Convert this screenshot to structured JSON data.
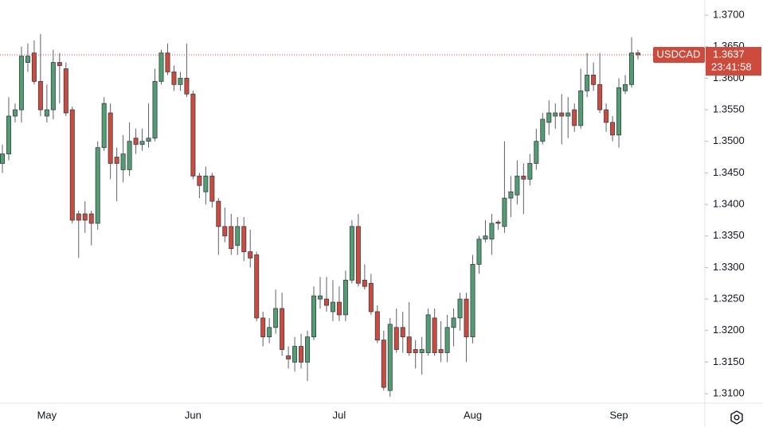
{
  "chart_data": {
    "type": "candlestick",
    "categories": [
      null,
      null,
      null,
      null,
      null,
      null,
      null,
      "May",
      null,
      null,
      null,
      null,
      null,
      null,
      null,
      null,
      null,
      null,
      null,
      null,
      null,
      null,
      null,
      null,
      null,
      null,
      null,
      null,
      null,
      null,
      "Jun",
      null,
      null,
      null,
      null,
      null,
      null,
      null,
      null,
      null,
      null,
      null,
      null,
      null,
      null,
      null,
      null,
      null,
      null,
      null,
      null,
      null,
      null,
      "Jul",
      null,
      null,
      null,
      null,
      null,
      null,
      null,
      null,
      null,
      null,
      null,
      null,
      null,
      null,
      null,
      null,
      null,
      null,
      null,
      null,
      "Aug",
      null,
      null,
      null,
      null,
      null,
      null,
      null,
      null,
      null,
      null,
      null,
      null,
      null,
      null,
      null,
      null,
      null,
      null,
      null,
      null,
      null,
      null,
      "Sep",
      null,
      null,
      null
    ],
    "open": [
      1.3465,
      1.348,
      1.354,
      1.355,
      1.3625,
      1.364,
      1.3595,
      1.354,
      1.355,
      1.3625,
      1.3615,
      1.355,
      1.3385,
      1.3385,
      1.3385,
      1.337,
      1.349,
      1.3545,
      1.3475,
      1.3455,
      1.3455,
      1.3505,
      1.3495,
      1.35,
      1.3505,
      1.3595,
      1.364,
      1.361,
      1.359,
      1.36,
      1.3575,
      1.3445,
      1.342,
      1.3445,
      1.3405,
      1.3365,
      1.3365,
      1.3335,
      1.3365,
      1.3325,
      1.332,
      1.322,
      1.319,
      1.3205,
      1.3235,
      1.316,
      1.315,
      1.3175,
      1.315,
      1.319,
      1.325,
      1.325,
      1.323,
      1.3245,
      1.3225,
      1.328,
      1.3365,
      1.328,
      1.3275,
      1.323,
      1.3185,
      1.3105,
      1.3205,
      1.3205,
      1.319,
      1.317,
      1.3165,
      1.3165,
      1.322,
      1.317,
      1.3165,
      1.3205,
      1.322,
      1.325,
      1.319,
      1.3305,
      1.3345,
      1.3345,
      1.3372,
      1.3365,
      1.341,
      1.3415,
      1.3445,
      1.344,
      1.3465,
      1.35,
      1.353,
      1.354,
      1.3545,
      1.354,
      1.355,
      1.3525,
      1.358,
      1.3605,
      1.359,
      1.355,
      1.353,
      1.351,
      1.358,
      1.359,
      1.364
    ],
    "high": [
      1.3495,
      1.357,
      1.356,
      1.365,
      1.3655,
      1.366,
      1.367,
      1.359,
      1.3645,
      1.364,
      1.3625,
      1.3555,
      1.339,
      1.3405,
      1.339,
      1.35,
      1.357,
      1.356,
      1.349,
      1.351,
      1.353,
      1.352,
      1.352,
      1.356,
      1.3615,
      1.3645,
      1.3655,
      1.362,
      1.361,
      1.3655,
      1.358,
      1.345,
      1.346,
      1.345,
      1.341,
      1.3395,
      1.3385,
      1.338,
      1.338,
      1.336,
      1.3325,
      1.323,
      1.322,
      1.3265,
      1.326,
      1.3175,
      1.319,
      1.3195,
      1.32,
      1.327,
      1.3285,
      1.3285,
      1.328,
      1.327,
      1.3295,
      1.3375,
      1.3385,
      1.3305,
      1.329,
      1.324,
      1.32,
      1.322,
      1.3235,
      1.323,
      1.3245,
      1.3185,
      1.319,
      1.3235,
      1.3235,
      1.3215,
      1.3225,
      1.3235,
      1.326,
      1.326,
      1.332,
      1.335,
      1.3375,
      1.3385,
      1.3375,
      1.35,
      1.3445,
      1.347,
      1.3465,
      1.348,
      1.352,
      1.3545,
      1.3565,
      1.356,
      1.3575,
      1.357,
      1.356,
      1.3615,
      1.364,
      1.3625,
      1.364,
      1.356,
      1.354,
      1.36,
      1.3605,
      1.3665,
      1.3645
    ],
    "low": [
      1.345,
      1.347,
      1.353,
      1.353,
      1.361,
      1.359,
      1.354,
      1.353,
      1.3535,
      1.356,
      1.354,
      1.337,
      1.3315,
      1.3355,
      1.3335,
      1.336,
      1.3485,
      1.344,
      1.3405,
      1.3435,
      1.3445,
      1.348,
      1.3485,
      1.349,
      1.35,
      1.359,
      1.3605,
      1.358,
      1.358,
      1.357,
      1.344,
      1.341,
      1.34,
      1.3395,
      1.332,
      1.334,
      1.332,
      1.332,
      1.331,
      1.33,
      1.3215,
      1.3175,
      1.318,
      1.3195,
      1.316,
      1.314,
      1.3135,
      1.314,
      1.312,
      1.3185,
      1.3235,
      1.323,
      1.3215,
      1.3215,
      1.3215,
      1.3275,
      1.327,
      1.3265,
      1.3225,
      1.318,
      1.3105,
      1.3095,
      1.3165,
      1.3165,
      1.316,
      1.314,
      1.313,
      1.316,
      1.316,
      1.315,
      1.315,
      1.3175,
      1.32,
      1.315,
      1.318,
      1.329,
      1.334,
      1.332,
      1.336,
      1.3355,
      1.338,
      1.34,
      1.3385,
      1.343,
      1.3455,
      1.3495,
      1.351,
      1.352,
      1.3495,
      1.3505,
      1.3515,
      1.352,
      1.357,
      1.358,
      1.3545,
      1.3515,
      1.35,
      1.349,
      1.3575,
      1.3585,
      1.363
    ],
    "close": [
      1.348,
      1.354,
      1.355,
      1.3635,
      1.3635,
      1.3595,
      1.355,
      1.355,
      1.3625,
      1.362,
      1.3545,
      1.3375,
      1.3375,
      1.3375,
      1.337,
      1.349,
      1.356,
      1.3465,
      1.3465,
      1.348,
      1.35,
      1.3495,
      1.35,
      1.3505,
      1.3595,
      1.364,
      1.361,
      1.359,
      1.36,
      1.3575,
      1.3445,
      1.343,
      1.3445,
      1.3405,
      1.3365,
      1.335,
      1.333,
      1.3365,
      1.3325,
      1.3315,
      1.322,
      1.319,
      1.3205,
      1.3235,
      1.317,
      1.3155,
      1.3175,
      1.315,
      1.319,
      1.3255,
      1.3255,
      1.324,
      1.3245,
      1.3225,
      1.328,
      1.3365,
      1.3275,
      1.327,
      1.323,
      1.3185,
      1.311,
      1.321,
      1.317,
      1.319,
      1.3165,
      1.3165,
      1.317,
      1.3225,
      1.3165,
      1.3165,
      1.3205,
      1.322,
      1.325,
      1.319,
      1.3305,
      1.3345,
      1.335,
      1.337,
      1.337,
      1.341,
      1.342,
      1.3445,
      1.344,
      1.3465,
      1.35,
      1.3535,
      1.3545,
      1.3545,
      1.354,
      1.3545,
      1.3525,
      1.358,
      1.3605,
      1.359,
      1.355,
      1.353,
      1.351,
      1.3585,
      1.359,
      1.364,
      1.3637
    ],
    "up_color": "#519e72",
    "down_color": "#cc4b3c",
    "ylim": [
      1.3085,
      1.3724
    ],
    "yticks": [
      {
        "value": 1.31,
        "label": "1.3100"
      },
      {
        "value": 1.315,
        "label": "1.3150"
      },
      {
        "value": 1.32,
        "label": "1.3200"
      },
      {
        "value": 1.325,
        "label": "1.3250"
      },
      {
        "value": 1.33,
        "label": "1.3300"
      },
      {
        "value": 1.335,
        "label": "1.3350"
      },
      {
        "value": 1.34,
        "label": "1.3400"
      },
      {
        "value": 1.345,
        "label": "1.3450"
      },
      {
        "value": 1.35,
        "label": "1.3500"
      },
      {
        "value": 1.355,
        "label": "1.3550"
      },
      {
        "value": 1.36,
        "label": "1.3600"
      },
      {
        "value": 1.365,
        "label": "1.3650"
      },
      {
        "value": 1.37,
        "label": "1.3700"
      }
    ],
    "last_price": {
      "symbol": "USDCAD",
      "value": 1.3637,
      "countdown": "23:41:58"
    }
  }
}
